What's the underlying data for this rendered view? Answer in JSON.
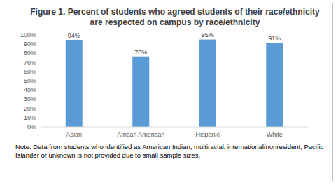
{
  "chart_data": {
    "type": "bar",
    "title": "Figure 1. Percent of students who agreed students of their race/ethnicity are respected on campus by race/ethnicity",
    "categories": [
      "Asian",
      "African American",
      "Hispanic",
      "White"
    ],
    "values": [
      94,
      76,
      95,
      91
    ],
    "value_labels": [
      "94%",
      "76%",
      "95%",
      "91%"
    ],
    "color": "#5B9BD5",
    "ylim": [
      0,
      100
    ],
    "yticks": [
      {
        "value": 0,
        "label": "0%"
      },
      {
        "value": 10,
        "label": "10%"
      },
      {
        "value": 20,
        "label": "20%"
      },
      {
        "value": 30,
        "label": "30%"
      },
      {
        "value": 40,
        "label": "40%"
      },
      {
        "value": 50,
        "label": "50%"
      },
      {
        "value": 60,
        "label": "60%"
      },
      {
        "value": 70,
        "label": "70%"
      },
      {
        "value": 80,
        "label": "80%"
      },
      {
        "value": 90,
        "label": "90%"
      },
      {
        "value": 100,
        "label": "100%"
      }
    ],
    "grid": false,
    "data_labels": true,
    "annotations": [
      "Note: Data from students who identified as American Indian, multiracial, international/nonresident, Pacific Islander or unknown is not provided due to small sample sizes."
    ]
  }
}
